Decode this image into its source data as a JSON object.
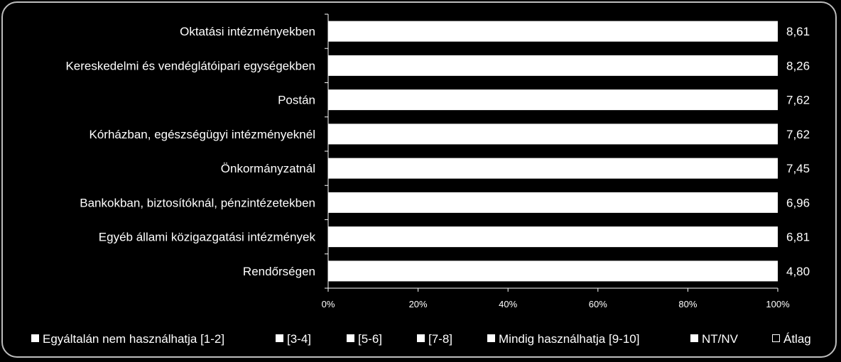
{
  "chart_data": {
    "type": "bar",
    "orientation": "horizontal",
    "stacked": "percent",
    "categories": [
      "Oktatási intézményekben",
      "Kereskedelmi és vendéglátóipari egységekben",
      "Postán",
      "Kórházban, egészségügyi intézményeknél",
      "Önkormányzatnál",
      "Bankokban, biztosítóknál, pénzintézetekben",
      "Egyéb állami közigazgatási intézmények",
      "Rendőrségen"
    ],
    "series": [
      {
        "name": "Egyáltalán nem használhatja [1-2]",
        "values": [
          0,
          0,
          0,
          0,
          0,
          0,
          0,
          0
        ]
      },
      {
        "name": "[3-4]",
        "values": [
          0,
          0,
          0,
          0,
          0,
          0,
          0,
          0
        ]
      },
      {
        "name": "[5-6]",
        "values": [
          0,
          0,
          0,
          0,
          0,
          0,
          0,
          0
        ]
      },
      {
        "name": "[7-8]",
        "values": [
          0,
          0,
          0,
          0,
          0,
          0,
          0,
          0
        ]
      },
      {
        "name": "Mindig használhatja [9-10]",
        "values": [
          100,
          100,
          100,
          100,
          100,
          100,
          100,
          100
        ]
      },
      {
        "name": "NT/NV",
        "values": [
          0,
          0,
          0,
          0,
          0,
          0,
          0,
          0
        ]
      }
    ],
    "average": {
      "name": "Átlag",
      "labels": [
        "8,61",
        "8,26",
        "7,62",
        "7,62",
        "7,45",
        "6,96",
        "6,81",
        "4,80"
      ]
    },
    "x_ticks": [
      "0%",
      "20%",
      "40%",
      "60%",
      "80%",
      "100%"
    ],
    "xlim": [
      0,
      100
    ],
    "title": "",
    "xlabel": "",
    "ylabel": "",
    "legend_position": "bottom",
    "colors": {
      "background": "#000000",
      "bar": "#ffffff",
      "text": "#ffffff",
      "border": "#bdbdbd"
    }
  }
}
